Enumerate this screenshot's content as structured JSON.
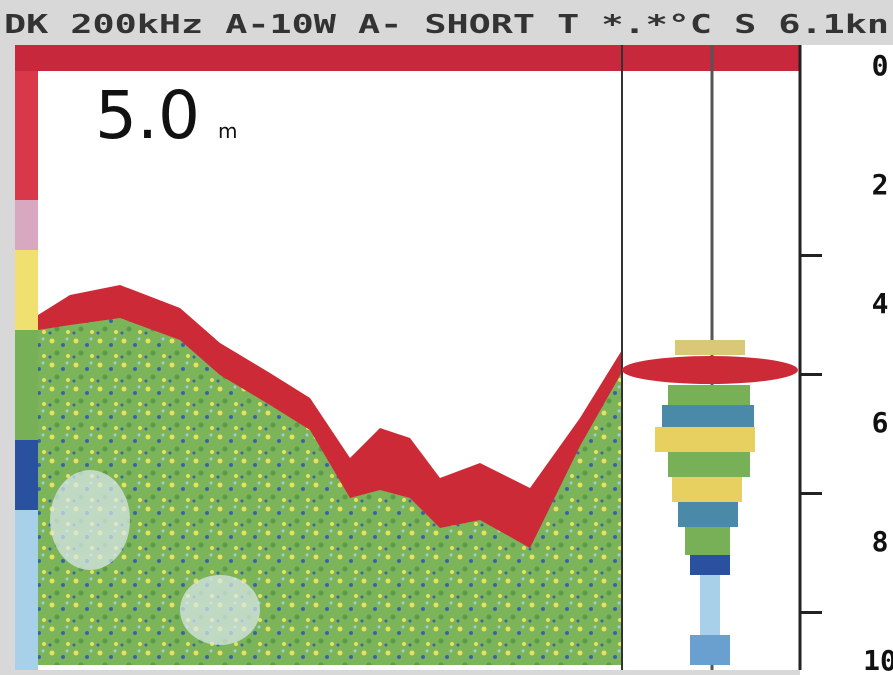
{
  "header": {
    "text": "DK 200kHz A-10W A- SHORT T *.*°C S 6.1kn"
  },
  "depth": {
    "value": "5.0",
    "unit": "m"
  },
  "scale": {
    "labels": [
      "0",
      "2",
      "4",
      "6",
      "8",
      "10"
    ]
  }
}
